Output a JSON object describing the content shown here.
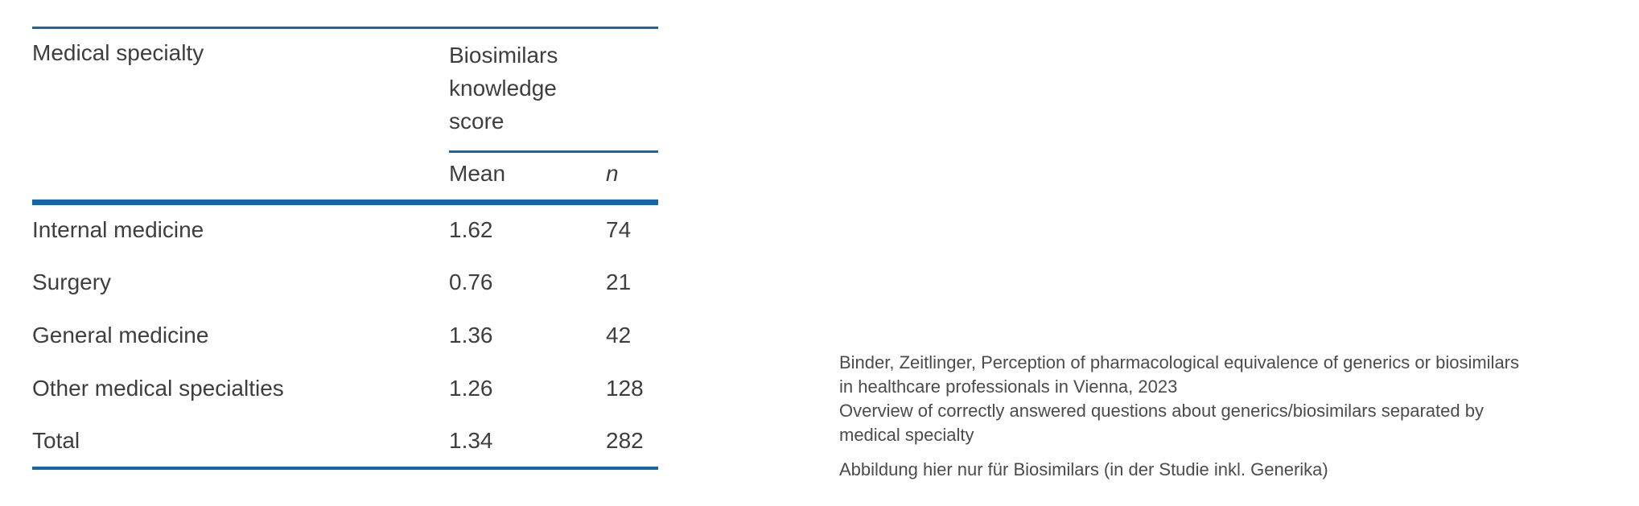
{
  "table": {
    "column_header": "Medical specialty",
    "group_header": "Biosimilars knowledge score",
    "sub_headers": {
      "mean": "Mean",
      "n": "n"
    },
    "rows": [
      {
        "specialty": "Internal medicine",
        "mean": "1.62",
        "n": "74"
      },
      {
        "specialty": "Surgery",
        "mean": "0.76",
        "n": "21"
      },
      {
        "specialty": "General medicine",
        "mean": "1.36",
        "n": "42"
      },
      {
        "specialty": "Other medical specialties",
        "mean": "1.26",
        "n": "128"
      },
      {
        "specialty": "Total",
        "mean": "1.34",
        "n": "282"
      }
    ]
  },
  "caption": {
    "lines": [
      "Binder, Zeitlinger, Perception of pharmacological equivalence of generics or biosimilars",
      "in healthcare professionals in Vienna, 2023",
      "Overview of correctly answered questions about generics/biosimilars separated by",
      "medical specialty"
    ],
    "note": "Abbildung hier nur für Biosimilars (in der Studie inkl. Generika)"
  },
  "colors": {
    "rule_blue": "#1667a8",
    "table_text": "#3e3e3e",
    "caption_text": "#4b4b4b",
    "background": "#ffffff"
  },
  "chart_data": {
    "type": "table",
    "group_header": "Biosimilars knowledge score",
    "columns": [
      "Medical specialty",
      "Mean",
      "n"
    ],
    "rows": [
      [
        "Internal medicine",
        1.62,
        74
      ],
      [
        "Surgery",
        0.76,
        21
      ],
      [
        "General medicine",
        1.36,
        42
      ],
      [
        "Other medical specialties",
        1.26,
        128
      ],
      [
        "Total",
        1.34,
        282
      ]
    ],
    "notes": [
      "Binder, Zeitlinger, Perception of pharmacological equivalence of generics or biosimilars in healthcare professionals in Vienna, 2023",
      "Overview of correctly answered questions about generics/biosimilars separated by medical specialty",
      "Abbildung hier nur für Biosimilars (in der Studie inkl. Generika)"
    ]
  }
}
